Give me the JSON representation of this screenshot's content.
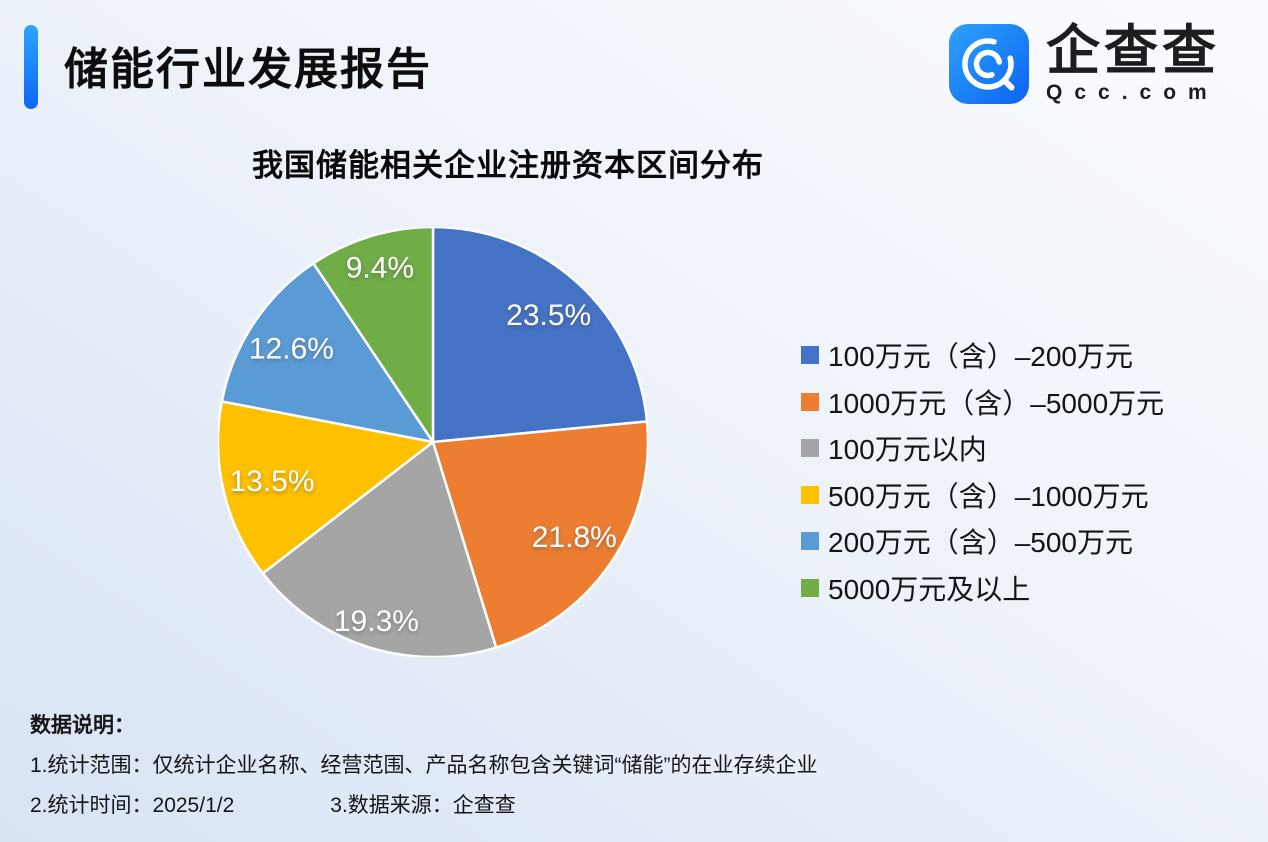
{
  "header": {
    "report_title": "储能行业发展报告",
    "brand": {
      "name_cn": "企查查",
      "name_en": "Qcc.com"
    }
  },
  "chart_data": {
    "type": "pie",
    "title": "我国储能相关企业注册资本区间分布",
    "unit": "%",
    "start_angle_deg": 0,
    "direction": "clockwise",
    "legend_position": "right",
    "slices": [
      {
        "label": "100万元（含）–200万元",
        "value": 23.5,
        "display": "23.5%",
        "color": "#4472C4"
      },
      {
        "label": "1000万元（含）–5000万元",
        "value": 21.8,
        "display": "21.8%",
        "color": "#ED7D31"
      },
      {
        "label": "100万元以内",
        "value": 19.3,
        "display": "19.3%",
        "color": "#A5A5A5"
      },
      {
        "label": "500万元（含）–1000万元",
        "value": 13.5,
        "display": "13.5%",
        "color": "#FFC000"
      },
      {
        "label": "200万元（含）–500万元",
        "value": 12.6,
        "display": "12.6%",
        "color": "#5B9BD5"
      },
      {
        "label": "5000万元及以上",
        "value": 9.4,
        "display": "9.4%",
        "color": "#70AD47"
      }
    ],
    "label_radius_factors": [
      0.8,
      0.79,
      0.87,
      0.77,
      0.79,
      0.85
    ]
  },
  "footer": {
    "heading": "数据说明：",
    "note1": "1.统计范围：仅统计企业名称、经营范围、产品名称包含关键词“储能”的在业存续企业",
    "note2_time": "2.统计时间：2025/1/2",
    "note2_source": "3.数据来源：企查查"
  }
}
